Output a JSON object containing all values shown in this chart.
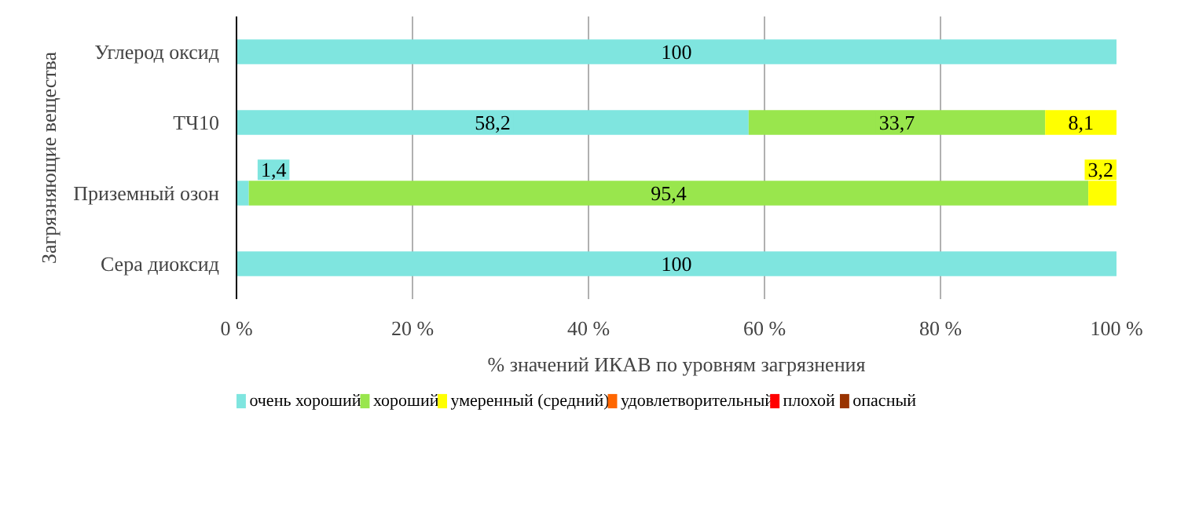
{
  "chart_data": {
    "type": "bar",
    "orientation": "horizontal",
    "stacked": true,
    "categories": [
      "Углерод оксид",
      "ТЧ10",
      "Приземный озон",
      "Сера диоксид"
    ],
    "series": [
      {
        "name": "очень хороший",
        "color": "#7fe5df",
        "values": [
          100,
          58.2,
          1.4,
          100
        ],
        "value_labels": [
          "100",
          "58,2",
          "1,4",
          "100"
        ]
      },
      {
        "name": "хороший",
        "color": "#99e64d",
        "values": [
          0,
          33.7,
          95.4,
          0
        ],
        "value_labels": [
          null,
          "33,7",
          "95,4",
          null
        ]
      },
      {
        "name": "умеренный (средний)",
        "color": "#ffff00",
        "values": [
          0,
          8.1,
          3.2,
          0
        ],
        "value_labels": [
          null,
          "8,1",
          "3,2",
          null
        ]
      },
      {
        "name": "удовлетворительный",
        "color": "#ff6600",
        "values": [
          0,
          0,
          0,
          0
        ]
      },
      {
        "name": "плохой",
        "color": "#ff0000",
        "values": [
          0,
          0,
          0,
          0
        ]
      },
      {
        "name": "опасный",
        "color": "#993300",
        "values": [
          0,
          0,
          0,
          0
        ]
      }
    ],
    "xlim": [
      0,
      100
    ],
    "xticks": [
      {
        "value": 0,
        "label": "0 %"
      },
      {
        "value": 20,
        "label": "20 %"
      },
      {
        "value": 40,
        "label": "40 %"
      },
      {
        "value": 60,
        "label": "60 %"
      },
      {
        "value": 80,
        "label": "80 %"
      },
      {
        "value": 100,
        "label": "100 %"
      }
    ],
    "xlabel": "% значений ИКАВ по уровням загрязнения",
    "ylabel": "Загрязняющие вещества",
    "grid": "x",
    "legend": "bottom"
  }
}
